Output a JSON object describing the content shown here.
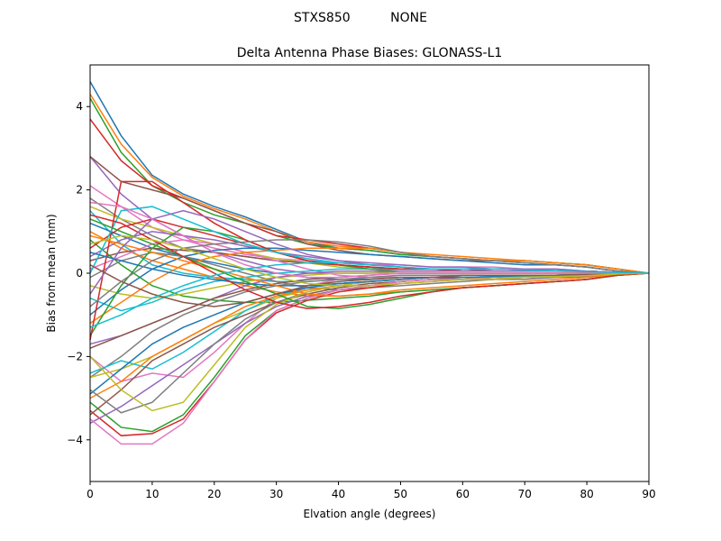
{
  "chart_data": {
    "type": "line",
    "suptitle": "STXS850          NONE",
    "title": "Delta Antenna Phase Biases: GLONASS-L1",
    "xlabel": "Elvation angle (degrees)",
    "ylabel": "Bias from mean (mm)",
    "xlim": [
      0,
      90
    ],
    "ylim": [
      -5,
      5
    ],
    "xticks": [
      0,
      10,
      20,
      30,
      40,
      50,
      60,
      70,
      80,
      90
    ],
    "yticks": [
      -4,
      -2,
      0,
      2,
      4
    ],
    "grid": false,
    "x": [
      0,
      5,
      10,
      15,
      20,
      25,
      30,
      35,
      40,
      45,
      50,
      55,
      60,
      65,
      70,
      75,
      80,
      85,
      90
    ],
    "colors": [
      "#1f77b4",
      "#ff7f0e",
      "#2ca02c",
      "#d62728",
      "#9467bd",
      "#8c564b",
      "#e377c2",
      "#7f7f7f",
      "#bcbd22",
      "#17becf"
    ],
    "series": [
      {
        "values": [
          4.6,
          3.3,
          2.35,
          1.9,
          1.6,
          1.35,
          1.05,
          0.75,
          0.6,
          0.55,
          0.45,
          0.4,
          0.35,
          0.3,
          0.3,
          0.25,
          0.2,
          0.1,
          0
        ]
      },
      {
        "values": [
          4.3,
          3.1,
          2.3,
          1.85,
          1.55,
          1.3,
          1.0,
          0.75,
          0.65,
          0.6,
          0.5,
          0.45,
          0.4,
          0.35,
          0.3,
          0.25,
          0.2,
          0.1,
          0
        ]
      },
      {
        "values": [
          4.2,
          2.9,
          2.1,
          1.7,
          1.4,
          1.2,
          0.9,
          0.7,
          0.6,
          0.55,
          0.45,
          0.4,
          0.35,
          0.3,
          0.3,
          0.25,
          0.2,
          0.1,
          0
        ]
      },
      {
        "values": [
          3.7,
          2.7,
          2.1,
          1.8,
          1.5,
          1.2,
          0.9,
          0.8,
          0.7,
          0.6,
          0.5,
          0.4,
          0.35,
          0.3,
          0.25,
          0.2,
          0.15,
          0.05,
          0
        ]
      },
      {
        "values": [
          2.8,
          1.9,
          1.3,
          0.9,
          0.5,
          0.3,
          0.1,
          0.0,
          0.0,
          0.0,
          0.05,
          0.05,
          0.05,
          0.05,
          0.05,
          0.05,
          0.05,
          0.02,
          0
        ]
      },
      {
        "values": [
          2.8,
          2.2,
          2.0,
          1.8,
          1.5,
          1.2,
          1.0,
          0.7,
          0.55,
          0.45,
          0.4,
          0.35,
          0.3,
          0.3,
          0.25,
          0.2,
          0.15,
          0.05,
          0
        ]
      },
      {
        "values": [
          2.1,
          1.6,
          1.1,
          0.8,
          0.6,
          0.45,
          0.35,
          0.3,
          0.25,
          0.2,
          0.2,
          0.15,
          0.15,
          0.15,
          0.1,
          0.1,
          0.05,
          0.02,
          0
        ]
      },
      {
        "values": [
          1.8,
          1.3,
          0.9,
          0.6,
          0.5,
          0.4,
          0.3,
          0.25,
          0.2,
          0.15,
          0.1,
          0.1,
          0.1,
          0.05,
          0.05,
          0.05,
          0.05,
          0.02,
          0
        ]
      },
      {
        "values": [
          1.6,
          1.3,
          1.1,
          0.9,
          0.7,
          0.5,
          0.35,
          0.25,
          0.15,
          0.1,
          0.05,
          0.05,
          0.05,
          0.05,
          0.05,
          0.05,
          0.02,
          0.01,
          0
        ]
      },
      {
        "values": [
          1.5,
          0.7,
          0.2,
          0.0,
          -0.1,
          -0.15,
          -0.2,
          -0.2,
          -0.15,
          -0.15,
          -0.1,
          -0.1,
          -0.1,
          -0.1,
          -0.08,
          -0.06,
          -0.04,
          -0.02,
          0
        ]
      },
      {
        "values": [
          1.2,
          0.9,
          0.6,
          0.4,
          0.25,
          0.1,
          0.0,
          -0.1,
          -0.15,
          -0.15,
          -0.1,
          -0.1,
          -0.1,
          -0.08,
          -0.06,
          -0.05,
          -0.03,
          -0.02,
          0
        ]
      },
      {
        "values": [
          1.0,
          0.6,
          0.3,
          0.1,
          -0.1,
          -0.3,
          -0.45,
          -0.55,
          -0.55,
          -0.5,
          -0.45,
          -0.4,
          -0.35,
          -0.3,
          -0.25,
          -0.2,
          -0.15,
          -0.05,
          0
        ]
      },
      {
        "values": [
          0.8,
          0.2,
          -0.3,
          -0.55,
          -0.65,
          -0.7,
          -0.7,
          -0.65,
          -0.6,
          -0.55,
          -0.45,
          -0.4,
          -0.35,
          -0.3,
          -0.25,
          -0.2,
          -0.15,
          -0.05,
          0
        ]
      },
      {
        "values": [
          0.6,
          1.1,
          1.3,
          1.1,
          0.9,
          0.7,
          0.5,
          0.3,
          0.2,
          0.15,
          0.1,
          0.1,
          0.05,
          0.05,
          0.05,
          0.05,
          0.05,
          0.02,
          0
        ]
      },
      {
        "values": [
          0.4,
          0.8,
          1.0,
          0.9,
          0.8,
          0.65,
          0.5,
          0.4,
          0.3,
          0.25,
          0.2,
          0.15,
          0.15,
          0.1,
          0.1,
          0.1,
          0.05,
          0.02,
          0
        ]
      },
      {
        "values": [
          0.3,
          0.5,
          0.6,
          0.55,
          0.5,
          0.4,
          0.3,
          0.25,
          0.2,
          0.15,
          0.1,
          0.1,
          0.1,
          0.05,
          0.05,
          0.05,
          0.05,
          0.02,
          0
        ]
      },
      {
        "values": [
          0.1,
          0.4,
          0.7,
          0.8,
          0.7,
          0.5,
          0.3,
          0.1,
          -0.05,
          -0.1,
          -0.1,
          -0.1,
          -0.05,
          -0.05,
          -0.05,
          -0.05,
          -0.03,
          -0.01,
          0
        ]
      },
      {
        "values": [
          -0.1,
          0.3,
          0.5,
          0.4,
          0.2,
          0.0,
          -0.2,
          -0.35,
          -0.4,
          -0.35,
          -0.3,
          -0.25,
          -0.2,
          -0.15,
          -0.15,
          -0.1,
          -0.08,
          -0.03,
          0
        ]
      },
      {
        "values": [
          -0.3,
          -0.5,
          -0.6,
          -0.5,
          -0.35,
          -0.2,
          -0.1,
          -0.05,
          0.0,
          0.0,
          0.0,
          0.0,
          0.0,
          0.0,
          0.0,
          0.0,
          0.0,
          0.0,
          0
        ]
      },
      {
        "values": [
          -0.6,
          -0.9,
          -0.7,
          -0.4,
          -0.2,
          -0.1,
          0.0,
          0.05,
          0.1,
          0.1,
          0.1,
          0.1,
          0.05,
          0.05,
          0.05,
          0.05,
          0.05,
          0.02,
          0
        ]
      },
      {
        "values": [
          -1.0,
          -0.4,
          0.1,
          0.4,
          0.55,
          0.6,
          0.6,
          0.55,
          0.5,
          0.45,
          0.4,
          0.35,
          0.3,
          0.25,
          0.2,
          0.2,
          0.15,
          0.05,
          0
        ]
      },
      {
        "values": [
          -1.2,
          -0.7,
          -0.2,
          0.2,
          0.4,
          0.5,
          0.55,
          0.6,
          0.6,
          0.6,
          0.5,
          0.4,
          0.35,
          0.3,
          0.3,
          0.25,
          0.2,
          0.1,
          0
        ]
      },
      {
        "values": [
          -1.5,
          -0.3,
          0.6,
          1.1,
          1.0,
          0.8,
          0.5,
          0.3,
          0.2,
          0.1,
          0.05,
          0.05,
          0.05,
          0.05,
          0.05,
          0.05,
          0.05,
          0.02,
          0
        ]
      },
      {
        "values": [
          -1.6,
          2.2,
          2.2,
          1.7,
          1.2,
          0.8,
          0.5,
          0.3,
          0.2,
          0.15,
          0.1,
          0.1,
          0.05,
          0.05,
          0.05,
          0.05,
          0.05,
          0.02,
          0
        ]
      },
      {
        "values": [
          -1.7,
          -1.5,
          -1.2,
          -0.9,
          -0.6,
          -0.3,
          -0.1,
          0.0,
          0.05,
          0.05,
          0.05,
          0.05,
          0.05,
          0.05,
          0.05,
          0.05,
          0.05,
          0.02,
          0
        ]
      },
      {
        "values": [
          -1.8,
          -1.5,
          -1.2,
          -0.9,
          -0.6,
          -0.4,
          -0.25,
          -0.15,
          -0.1,
          -0.05,
          0.0,
          0.0,
          0.0,
          0.0,
          0.0,
          0.0,
          0.0,
          0.0,
          0
        ]
      },
      {
        "values": [
          -2.0,
          -2.6,
          -2.4,
          -2.5,
          -1.9,
          -1.2,
          -0.6,
          -0.3,
          -0.15,
          -0.1,
          -0.05,
          -0.05,
          -0.05,
          -0.05,
          -0.05,
          -0.05,
          -0.03,
          -0.01,
          0
        ]
      },
      {
        "values": [
          -2.5,
          -2.0,
          -1.4,
          -1.0,
          -0.7,
          -0.45,
          -0.3,
          -0.2,
          -0.15,
          -0.1,
          -0.05,
          -0.05,
          -0.05,
          -0.05,
          -0.05,
          -0.05,
          -0.03,
          -0.01,
          0
        ]
      },
      {
        "values": [
          -2.5,
          -2.3,
          -2.0,
          -1.6,
          -1.2,
          -0.9,
          -0.6,
          -0.4,
          -0.3,
          -0.2,
          -0.15,
          -0.1,
          -0.1,
          -0.1,
          -0.08,
          -0.06,
          -0.04,
          -0.02,
          0
        ]
      },
      {
        "values": [
          -2.4,
          -2.1,
          -2.3,
          -1.9,
          -1.4,
          -0.9,
          -0.55,
          -0.35,
          -0.25,
          -0.2,
          -0.15,
          -0.1,
          -0.1,
          -0.08,
          -0.06,
          -0.05,
          -0.03,
          -0.01,
          0
        ]
      },
      {
        "values": [
          -2.9,
          -2.3,
          -1.7,
          -1.3,
          -1.0,
          -0.7,
          -0.5,
          -0.35,
          -0.25,
          -0.2,
          -0.15,
          -0.1,
          -0.1,
          -0.1,
          -0.08,
          -0.06,
          -0.04,
          -0.02,
          0
        ]
      },
      {
        "values": [
          -3.0,
          -2.6,
          -2.0,
          -1.6,
          -1.2,
          -0.8,
          -0.55,
          -0.4,
          -0.3,
          -0.2,
          -0.15,
          -0.1,
          -0.1,
          -0.1,
          -0.08,
          -0.06,
          -0.04,
          -0.02,
          0
        ]
      },
      {
        "values": [
          -3.1,
          -3.7,
          -3.8,
          -3.4,
          -2.5,
          -1.5,
          -0.9,
          -0.6,
          -0.4,
          -0.3,
          -0.2,
          -0.15,
          -0.15,
          -0.1,
          -0.1,
          -0.08,
          -0.06,
          -0.02,
          0
        ]
      },
      {
        "values": [
          -3.3,
          -3.9,
          -3.85,
          -3.5,
          -2.6,
          -1.6,
          -0.95,
          -0.65,
          -0.45,
          -0.35,
          -0.25,
          -0.2,
          -0.15,
          -0.15,
          -0.1,
          -0.08,
          -0.06,
          -0.02,
          0
        ]
      },
      {
        "values": [
          -3.6,
          -3.2,
          -2.7,
          -2.2,
          -1.7,
          -1.2,
          -0.8,
          -0.55,
          -0.4,
          -0.3,
          -0.2,
          -0.15,
          -0.15,
          -0.1,
          -0.1,
          -0.08,
          -0.06,
          -0.02,
          0
        ]
      },
      {
        "values": [
          -3.4,
          -2.8,
          -2.1,
          -1.7,
          -1.3,
          -1.0,
          -0.7,
          -0.5,
          -0.35,
          -0.25,
          -0.2,
          -0.15,
          -0.1,
          -0.1,
          -0.08,
          -0.06,
          -0.04,
          -0.02,
          0
        ]
      },
      {
        "values": [
          -3.5,
          -4.1,
          -4.1,
          -3.6,
          -2.6,
          -1.6,
          -0.9,
          -0.6,
          -0.4,
          -0.3,
          -0.2,
          -0.15,
          -0.15,
          -0.1,
          -0.1,
          -0.08,
          -0.06,
          -0.02,
          0
        ]
      },
      {
        "values": [
          -2.8,
          -3.35,
          -3.1,
          -2.4,
          -1.7,
          -1.1,
          -0.7,
          -0.45,
          -0.3,
          -0.2,
          -0.15,
          -0.1,
          -0.1,
          -0.1,
          -0.08,
          -0.06,
          -0.04,
          -0.02,
          0
        ]
      },
      {
        "values": [
          -2.0,
          -2.8,
          -3.3,
          -3.1,
          -2.2,
          -1.3,
          -0.75,
          -0.45,
          -0.3,
          -0.2,
          -0.15,
          -0.1,
          -0.1,
          -0.1,
          -0.08,
          -0.06,
          -0.04,
          -0.02,
          0
        ]
      },
      {
        "values": [
          0.0,
          1.5,
          1.6,
          1.3,
          1.0,
          0.7,
          0.5,
          0.35,
          0.25,
          0.2,
          0.15,
          0.1,
          0.1,
          0.1,
          0.08,
          0.06,
          0.04,
          0.02,
          0
        ]
      },
      {
        "values": [
          0.5,
          0.3,
          0.1,
          -0.05,
          -0.15,
          -0.25,
          -0.3,
          -0.3,
          -0.25,
          -0.2,
          -0.15,
          -0.1,
          -0.1,
          -0.08,
          -0.06,
          -0.05,
          -0.03,
          -0.01,
          0
        ]
      },
      {
        "values": [
          0.9,
          0.7,
          0.5,
          0.3,
          0.1,
          -0.1,
          -0.3,
          -0.5,
          -0.55,
          -0.5,
          -0.4,
          -0.35,
          -0.3,
          -0.25,
          -0.2,
          -0.15,
          -0.1,
          -0.05,
          0
        ]
      },
      {
        "values": [
          1.3,
          1.0,
          0.7,
          0.4,
          0.1,
          -0.2,
          -0.5,
          -0.8,
          -0.85,
          -0.75,
          -0.6,
          -0.45,
          -0.35,
          -0.3,
          -0.25,
          -0.2,
          -0.15,
          -0.05,
          0
        ]
      },
      {
        "values": [
          1.4,
          1.2,
          0.8,
          0.4,
          0.0,
          -0.4,
          -0.7,
          -0.85,
          -0.8,
          -0.7,
          -0.55,
          -0.45,
          -0.35,
          -0.3,
          -0.25,
          -0.2,
          -0.15,
          -0.05,
          0
        ]
      },
      {
        "values": [
          -0.5,
          0.6,
          1.3,
          1.5,
          1.3,
          1.0,
          0.7,
          0.45,
          0.3,
          0.2,
          0.15,
          0.1,
          0.1,
          0.1,
          0.08,
          0.06,
          0.04,
          0.02,
          0
        ]
      },
      {
        "values": [
          0.2,
          -0.2,
          -0.5,
          -0.7,
          -0.8,
          -0.7,
          -0.5,
          -0.3,
          -0.2,
          -0.15,
          -0.1,
          -0.1,
          -0.05,
          -0.05,
          -0.05,
          -0.05,
          -0.03,
          -0.01,
          0
        ]
      },
      {
        "values": [
          1.7,
          1.6,
          1.3,
          0.9,
          0.5,
          0.2,
          0.0,
          -0.1,
          -0.1,
          -0.05,
          0.0,
          0.0,
          0.0,
          0.0,
          0.0,
          0.0,
          0.0,
          0.0,
          0
        ]
      },
      {
        "values": [
          -0.8,
          -0.2,
          0.3,
          0.6,
          0.7,
          0.75,
          0.8,
          0.8,
          0.75,
          0.65,
          0.5,
          0.4,
          0.35,
          0.3,
          0.25,
          0.2,
          0.15,
          0.05,
          0
        ]
      },
      {
        "values": [
          0.7,
          0.9,
          0.8,
          0.6,
          0.35,
          0.1,
          -0.1,
          -0.25,
          -0.3,
          -0.3,
          -0.25,
          -0.2,
          -0.15,
          -0.15,
          -0.1,
          -0.08,
          -0.06,
          -0.02,
          0
        ]
      },
      {
        "values": [
          -1.3,
          -1.0,
          -0.6,
          -0.3,
          -0.05,
          0.1,
          0.2,
          0.25,
          0.25,
          0.2,
          0.15,
          0.1,
          0.1,
          0.1,
          0.08,
          0.06,
          0.04,
          0.02,
          0
        ]
      }
    ]
  }
}
